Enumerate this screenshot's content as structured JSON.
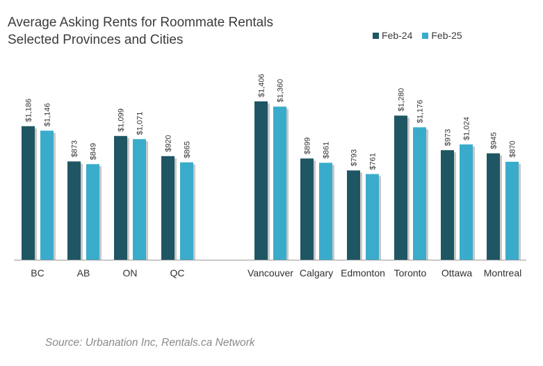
{
  "title_line1": "Average Asking Rents for Roommate Rentals",
  "title_line2": "Selected Provinces and Cities",
  "source": "Source: Urbanation Inc, Rentals.ca Network",
  "colors": {
    "feb24": "#1f5663",
    "feb25": "#3aaccb",
    "axis": "#9a9a9a",
    "shadow": "#c8c8c8"
  },
  "chart_data": {
    "type": "bar",
    "title": "Average Asking Rents for Roommate Rentals\nSelected Provinces and Cities",
    "categories": [
      "BC",
      "AB",
      "ON",
      "QC",
      "Vancouver",
      "Calgary",
      "Edmonton",
      "Toronto",
      "Ottawa",
      "Montreal"
    ],
    "series": [
      {
        "name": "Feb-24",
        "values": [
          1186,
          873,
          1099,
          920,
          1406,
          899,
          793,
          1280,
          973,
          945
        ],
        "labels": [
          "$1,186",
          "$873",
          "$1,099",
          "$920",
          "$1,406",
          "$899",
          "$793",
          "$1,280",
          "$973",
          "$945"
        ]
      },
      {
        "name": "Feb-25",
        "values": [
          1146,
          849,
          1071,
          865,
          1360,
          861,
          761,
          1176,
          1024,
          870
        ],
        "labels": [
          "$1,146",
          "$849",
          "$1,071",
          "$865",
          "$1,360",
          "$861",
          "$761",
          "$1,176",
          "$1,024",
          "$870"
        ]
      }
    ],
    "ylim": [
      0,
      1406
    ],
    "grid": false,
    "legend_position": "top-right"
  }
}
